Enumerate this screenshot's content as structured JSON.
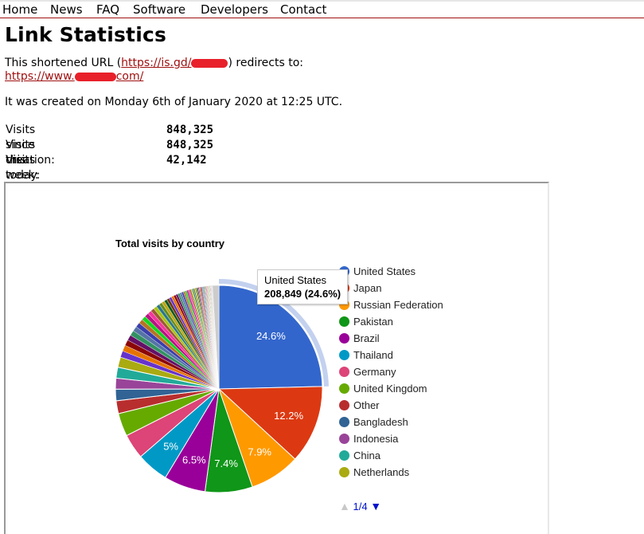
{
  "nav": {
    "items": [
      "Home",
      "News",
      "FAQ",
      "Software",
      "Developers",
      "Contact"
    ]
  },
  "page": {
    "title": "Link Statistics",
    "intro_prefix": "This shortened URL (",
    "short_url_visible": "https://is.gd/",
    "intro_suffix": ") redirects to:",
    "target_url_prefix": "https://www.",
    "target_url_suffix": "com/",
    "created": "It was created on Monday 6th of January 2020 at 12:25 UTC."
  },
  "stats": [
    {
      "label": "Visits since creation:",
      "value": "848,325"
    },
    {
      "label": "Visits this week:",
      "value": "848,325"
    },
    {
      "label": "Visits today:",
      "value": "42,142"
    }
  ],
  "tooltip": {
    "title": "United States",
    "value": "208,849 (24.6%)"
  },
  "pager": {
    "prev_icon": "triangle-up-icon",
    "text": "1/4",
    "next_icon": "triangle-down-icon"
  },
  "chart_data": {
    "type": "pie",
    "title": "Total visits by country",
    "legend_position": "right",
    "legend_page": "1/4",
    "highlighted": "United States",
    "categories": [
      "United States",
      "Japan",
      "Russian Federation",
      "Pakistan",
      "Brazil",
      "Thailand",
      "Germany",
      "United Kingdom",
      "Other",
      "Bangladesh",
      "Indonesia",
      "China",
      "Netherlands"
    ],
    "values": [
      24.6,
      12.2,
      7.9,
      7.4,
      6.5,
      5.0,
      3.9,
      3.6,
      2.0,
      1.8,
      1.7,
      1.7,
      1.6
    ],
    "colors": [
      "#3366cc",
      "#dc3912",
      "#ff9900",
      "#109618",
      "#990099",
      "#0099c6",
      "#dd4477",
      "#66aa00",
      "#b82e2e",
      "#316395",
      "#994499",
      "#22aa99",
      "#aaaa11"
    ],
    "slice_labels": [
      "24.6%",
      "12.2%",
      "7.9%",
      "7.4%",
      "6.5%",
      "5%",
      "",
      "",
      "",
      "",
      "",
      "",
      ""
    ],
    "counts": {
      "United States": 208849
    },
    "remaining_small_slices_percent": 20.0,
    "remaining_colors": [
      "#6633cc",
      "#e67300",
      "#8b0707",
      "#651067",
      "#329262",
      "#5574a6",
      "#3b3eac",
      "#b77322",
      "#16d620",
      "#b91383",
      "#f4359e",
      "#9c5935",
      "#a9c413",
      "#2a778d",
      "#668d1c",
      "#bea413",
      "#0c5922",
      "#743411"
    ]
  }
}
